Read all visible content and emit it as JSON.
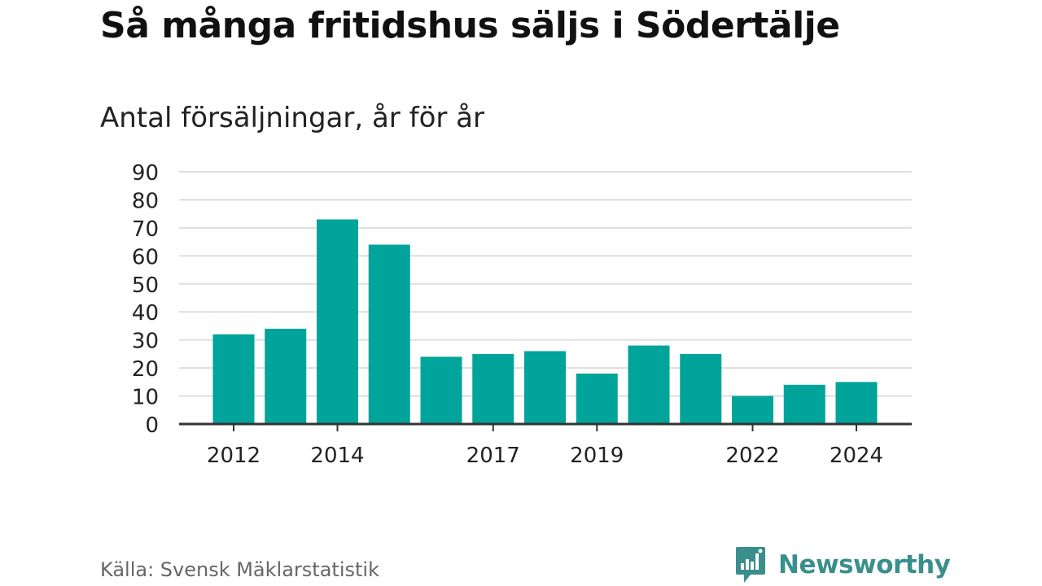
{
  "title": "Så många fritidshus säljs i Södertälje",
  "subtitle": "Antal försäljningar, år för år",
  "source": "Källa: Svensk Mäklarstatistik",
  "brand": {
    "name": "Newsworthy",
    "icon": "newsworthy-logo-icon",
    "color": "#3a8f8c"
  },
  "colors": {
    "bar": "#00a49a",
    "grid": "#dddddd",
    "axis": "#333333",
    "text": "#222222"
  },
  "chart_data": {
    "type": "bar",
    "categories": [
      "2012",
      "2013",
      "2014",
      "2015",
      "2016",
      "2017",
      "2018",
      "2019",
      "2020",
      "2021",
      "2022",
      "2023",
      "2024"
    ],
    "values": [
      32,
      34,
      73,
      64,
      24,
      25,
      26,
      18,
      28,
      25,
      10,
      14,
      15
    ],
    "x_tick_labels": [
      "2012",
      "2014",
      "2017",
      "2019",
      "2022",
      "2024"
    ],
    "y_ticks": [
      0,
      10,
      20,
      30,
      40,
      50,
      60,
      70,
      80,
      90
    ],
    "ylim": [
      0,
      90
    ],
    "grid": true,
    "xlabel": "",
    "ylabel": ""
  }
}
